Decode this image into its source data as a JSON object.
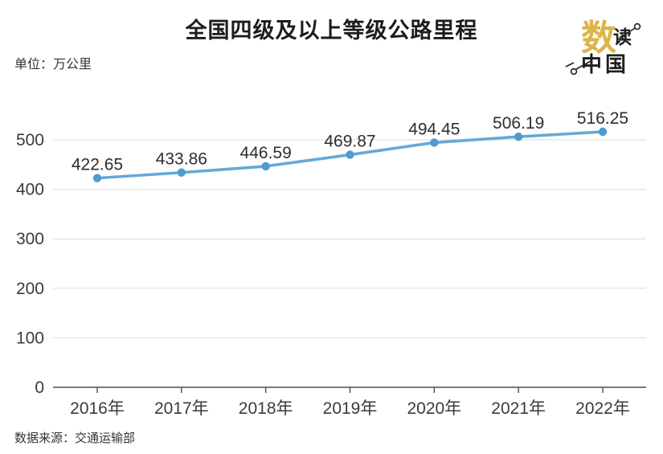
{
  "header": {
    "title": "全国四级及以上等级公路里程",
    "unit_label": "单位：万公里"
  },
  "logo": {
    "char_main": "数",
    "char_sub": "读",
    "text_bottom": "中国",
    "accent_color": "#DCB44A",
    "ink_color": "#1f1f1f"
  },
  "chart_data": {
    "type": "line",
    "title": "全国四级及以上等级公路里程",
    "unit": "万公里",
    "xlabel": "",
    "ylabel": "单位：万公里",
    "categories": [
      "2016年",
      "2017年",
      "2018年",
      "2019年",
      "2020年",
      "2021年",
      "2022年"
    ],
    "values": [
      422.65,
      433.86,
      446.59,
      469.87,
      494.45,
      506.19,
      516.25
    ],
    "data_labels": [
      "422.65",
      "433.86",
      "446.59",
      "469.87",
      "494.45",
      "506.19",
      "516.25"
    ],
    "yticks": [
      0,
      100,
      200,
      300,
      400,
      500
    ],
    "ylim": [
      0,
      540
    ],
    "grid": true,
    "legend": "none",
    "line_color": "#67A8D6",
    "marker_color": "#4F9BD0",
    "axis_color": "#4d4d4d",
    "gridline_color": "#dcdcdc",
    "label_color": "#2d2d2d"
  },
  "footer": {
    "source": "数据来源：交通运输部"
  }
}
